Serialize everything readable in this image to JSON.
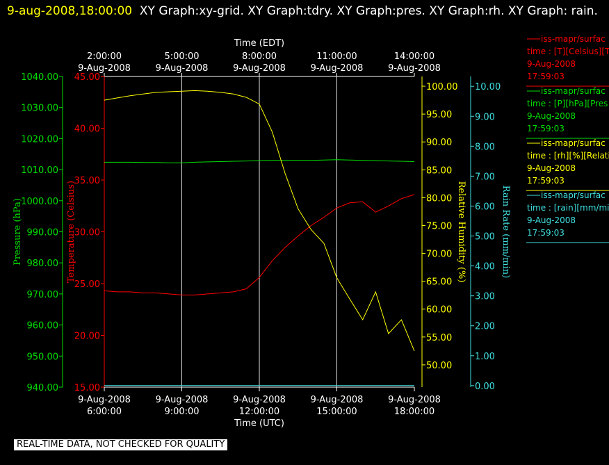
{
  "chart_data": {
    "type": "line",
    "title": "9-aug-2008,18:00:00",
    "subtitle": "XY Graph:xy-grid.  XY Graph:tdry.  XY Graph:pres.  XY Graph:rh.  XY Graph: rain.",
    "footer": "REAL-TIME DATA, NOT CHECKED FOR QUALITY",
    "xlabel": "Time (UTC)",
    "x2label": "Time (EDT)",
    "xlim": [
      6,
      18
    ],
    "xticks": [
      {
        "value": 6,
        "label": [
          "9-Aug-2008",
          "6:00:00"
        ]
      },
      {
        "value": 9,
        "label": [
          "9-Aug-2008",
          "9:00:00"
        ]
      },
      {
        "value": 12,
        "label": [
          "9-Aug-2008",
          "12:00:00"
        ]
      },
      {
        "value": 15,
        "label": [
          "9-Aug-2008",
          "15:00:00"
        ]
      },
      {
        "value": 18,
        "label": [
          "9-Aug-2008",
          "18:00:00"
        ]
      }
    ],
    "x2lim": [
      2,
      14
    ],
    "x2ticks": [
      {
        "value": 2,
        "label": [
          "2:00:00",
          "9-Aug-2008"
        ]
      },
      {
        "value": 5,
        "label": [
          "5:00:00",
          "9-Aug-2008"
        ]
      },
      {
        "value": 8,
        "label": [
          "8:00:00",
          "9-Aug-2008"
        ]
      },
      {
        "value": 11,
        "label": [
          "11:00:00",
          "9-Aug-2008"
        ]
      },
      {
        "value": 14,
        "label": [
          "14:00:00",
          "9-Aug-2008"
        ]
      }
    ],
    "grid": true,
    "y_axes": [
      {
        "label": "Pressure (hPa)",
        "color": "#00e000",
        "lim": [
          940,
          1040
        ],
        "ticks": [
          {
            "value": 940,
            "label": "940.00"
          },
          {
            "value": 950,
            "label": "950.00"
          },
          {
            "value": 960,
            "label": "960.00"
          },
          {
            "value": 970,
            "label": "970.00"
          },
          {
            "value": 980,
            "label": "980.00"
          },
          {
            "value": 990,
            "label": "990.00"
          },
          {
            "value": 1000,
            "label": "1000.00"
          },
          {
            "value": 1010,
            "label": "1010.00"
          },
          {
            "value": 1020,
            "label": "1020.00"
          },
          {
            "value": 1030,
            "label": "1030.00"
          },
          {
            "value": 1040,
            "label": "1040.00"
          }
        ]
      },
      {
        "label": "Temperature (Celsius)",
        "color": "#ff0000",
        "lim": [
          15,
          45
        ],
        "ticks": [
          {
            "value": 15,
            "label": "15.00"
          },
          {
            "value": 20,
            "label": "20.00"
          },
          {
            "value": 25,
            "label": "25.00"
          },
          {
            "value": 30,
            "label": "30.00"
          },
          {
            "value": 35,
            "label": "35.00"
          },
          {
            "value": 40,
            "label": "40.00"
          },
          {
            "value": 45,
            "label": "45.00"
          }
        ]
      },
      {
        "label": "Relative Humidity (%)",
        "color": "#ffff00",
        "lim": [
          46,
          101.75
        ],
        "ticks": [
          {
            "value": 50,
            "label": "50.00"
          },
          {
            "value": 55,
            "label": "55.00"
          },
          {
            "value": 60,
            "label": "60.00"
          },
          {
            "value": 65,
            "label": "65.00"
          },
          {
            "value": 70,
            "label": "70.00"
          },
          {
            "value": 75,
            "label": "75.00"
          },
          {
            "value": 80,
            "label": "80.00"
          },
          {
            "value": 85,
            "label": "85.00"
          },
          {
            "value": 90,
            "label": "90.00"
          },
          {
            "value": 95,
            "label": "95.00"
          },
          {
            "value": 100,
            "label": "100.00"
          }
        ]
      },
      {
        "label": "Rain Rate (mm/min)",
        "color": "#40e0e0",
        "lim": [
          -0.05,
          10.33
        ],
        "ticks": [
          {
            "value": 0,
            "label": "0.00"
          },
          {
            "value": 1,
            "label": "1.00"
          },
          {
            "value": 2,
            "label": "2.00"
          },
          {
            "value": 3,
            "label": "3.00"
          },
          {
            "value": 4,
            "label": "4.00"
          },
          {
            "value": 5,
            "label": "5.00"
          },
          {
            "value": 6,
            "label": "6.00"
          },
          {
            "value": 7,
            "label": "7.00"
          },
          {
            "value": 8,
            "label": "8.00"
          },
          {
            "value": 9,
            "label": "9.00"
          },
          {
            "value": 10,
            "label": "10.00"
          }
        ]
      }
    ],
    "x": [
      6,
      6.5,
      7,
      7.5,
      8,
      8.5,
      9,
      9.5,
      10,
      10.5,
      11,
      11.5,
      12,
      12.5,
      13,
      13.5,
      14,
      14.5,
      15,
      15.5,
      16,
      16.5,
      17,
      17.5,
      18
    ],
    "series": [
      {
        "name": "iss-mapr/surfac",
        "axis": 1,
        "color": "#ff0000",
        "legend_lines": [
          "time : [T][Celsius][T",
          "9-Aug-2008",
          "17:59:03"
        ],
        "values": [
          24.3,
          24.2,
          24.2,
          24.1,
          24.1,
          24.0,
          23.9,
          23.9,
          24.0,
          24.1,
          24.2,
          24.5,
          25.6,
          27.2,
          28.5,
          29.6,
          30.6,
          31.4,
          32.3,
          32.8,
          32.9,
          31.9,
          32.5,
          33.2,
          33.6
        ]
      },
      {
        "name": "iss-mapr/surfac",
        "axis": 0,
        "color": "#00e000",
        "legend_lines": [
          "time : [P][hPa][Pres",
          "9-Aug-2008",
          "17:59:03"
        ],
        "values": [
          1012.4,
          1012.4,
          1012.4,
          1012.3,
          1012.3,
          1012.2,
          1012.2,
          1012.4,
          1012.5,
          1012.6,
          1012.7,
          1012.8,
          1012.9,
          1013.0,
          1013.0,
          1013.0,
          1013.0,
          1013.1,
          1013.2,
          1013.1,
          1013.0,
          1012.9,
          1012.8,
          1012.7,
          1012.6
        ]
      },
      {
        "name": "iss-mapr/surfac",
        "axis": 2,
        "color": "#ffff00",
        "legend_lines": [
          "time : [rh][%][Relati",
          "9-Aug-2008",
          "17:59:03"
        ],
        "values": [
          97.5,
          97.9,
          98.3,
          98.6,
          98.9,
          99.0,
          99.1,
          99.2,
          99.1,
          98.9,
          98.6,
          98.0,
          96.8,
          91.8,
          84.3,
          78.0,
          74.3,
          71.8,
          65.6,
          61.8,
          58.1,
          63.1,
          55.6,
          58.1,
          52.5
        ]
      },
      {
        "name": "iss-mapr/surfac",
        "axis": 3,
        "color": "#40e0e0",
        "legend_lines": [
          "time : [rain][mm/min",
          "9-Aug-2008",
          "17:59:03"
        ],
        "values": [
          0,
          0,
          0,
          0,
          0,
          0,
          0,
          0,
          0,
          0,
          0,
          0,
          0,
          0,
          0,
          0,
          0,
          0,
          0,
          0,
          0,
          0,
          0,
          0,
          0
        ]
      }
    ]
  }
}
